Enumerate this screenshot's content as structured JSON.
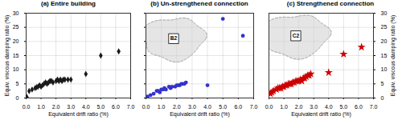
{
  "chart_data": [
    {
      "type": "scatter",
      "title": "(a) Entire building",
      "x": [
        0.05,
        0.2,
        0.4,
        0.6,
        0.7,
        0.8,
        0.9,
        1.0,
        1.1,
        1.2,
        1.3,
        1.4,
        1.5,
        1.6,
        1.7,
        1.8,
        2.0,
        2.1,
        2.2,
        2.3,
        2.4,
        2.5,
        2.6,
        2.8,
        3.0,
        4.0,
        5.0,
        6.2
      ],
      "values": [
        0.3,
        2.5,
        3.0,
        3.5,
        3.8,
        4.0,
        4.5,
        4.0,
        4.5,
        5.0,
        5.5,
        5.0,
        5.5,
        6.0,
        6.0,
        5.5,
        6.0,
        6.5,
        6.0,
        6.5,
        6.0,
        6.5,
        6.5,
        6.5,
        6.5,
        8.5,
        15.0,
        16.5
      ],
      "color": "#1a1a1a",
      "marker": "diamond",
      "xlabel": "Equivalent drift ratio (%)",
      "ylabel": "Equiv. viscous damping ratio (%)",
      "xlim": [
        0,
        7
      ],
      "ylim": [
        0,
        30
      ],
      "xticks": [
        0,
        1,
        2,
        3,
        4,
        5,
        6,
        7
      ],
      "yticks": [
        0,
        5,
        10,
        15,
        20,
        25,
        30
      ],
      "grid": true
    },
    {
      "type": "scatter",
      "title": "(b) Un-strengthened connection",
      "x": [
        0.1,
        0.3,
        0.5,
        0.7,
        0.8,
        0.9,
        1.0,
        1.1,
        1.2,
        1.3,
        1.5,
        1.6,
        1.7,
        1.9,
        2.0,
        2.1,
        2.2,
        2.3,
        2.4,
        2.5,
        2.6,
        4.0,
        5.0,
        6.3
      ],
      "values": [
        0.5,
        1.0,
        1.5,
        2.5,
        2.5,
        2.0,
        3.0,
        3.0,
        3.5,
        3.0,
        4.0,
        3.5,
        4.0,
        4.0,
        4.5,
        4.5,
        4.5,
        5.0,
        5.0,
        5.0,
        5.5,
        4.5,
        28.0,
        22.0
      ],
      "color": "#3333cc",
      "marker": "circle",
      "xlabel": "Equivalent drift ratio (%)",
      "xlim": [
        0,
        7
      ],
      "ylim": [
        0,
        30
      ],
      "xticks": [
        0,
        1,
        2,
        3,
        4,
        5,
        6,
        7
      ],
      "yticks": [
        0,
        5,
        10,
        15,
        20,
        25,
        30
      ],
      "tick_labels": "x",
      "grid": true,
      "annotations": [
        {
          "text": "B2",
          "x": 1.8,
          "y": 21.0,
          "rx": 2.0,
          "ry": 7.5
        }
      ]
    },
    {
      "type": "scatter",
      "title": "(c) Strengthened connection",
      "x": [
        0.1,
        0.2,
        0.3,
        0.5,
        0.6,
        0.7,
        0.8,
        0.9,
        1.0,
        1.1,
        1.2,
        1.3,
        1.4,
        1.5,
        1.6,
        1.7,
        1.8,
        1.9,
        2.0,
        2.1,
        2.2,
        2.3,
        2.4,
        2.5,
        2.6,
        2.7,
        2.8,
        4.0,
        5.0,
        6.2
      ],
      "values": [
        1.5,
        2.0,
        2.5,
        3.0,
        3.5,
        3.5,
        3.5,
        4.0,
        4.0,
        4.5,
        4.5,
        5.0,
        5.0,
        5.0,
        5.5,
        5.5,
        6.0,
        6.0,
        6.0,
        6.5,
        6.0,
        7.0,
        7.0,
        7.5,
        8.0,
        8.0,
        8.5,
        9.0,
        15.5,
        18.0
      ],
      "color": "#cc0000",
      "marker": "star",
      "xlabel": "Equivalent drift ratio (%)",
      "ylabel": "Equiv. viscous damping ratio (%)",
      "xlim": [
        0,
        7
      ],
      "ylim": [
        0,
        30
      ],
      "xticks": [
        0,
        1,
        2,
        3,
        4,
        5,
        6,
        7
      ],
      "yticks": [
        0,
        5,
        10,
        15,
        20,
        25,
        30
      ],
      "grid": true,
      "annotations": [
        {
          "text": "C2",
          "x": 1.8,
          "y": 22.0,
          "rx": 2.2,
          "ry": 7.5
        }
      ]
    }
  ]
}
